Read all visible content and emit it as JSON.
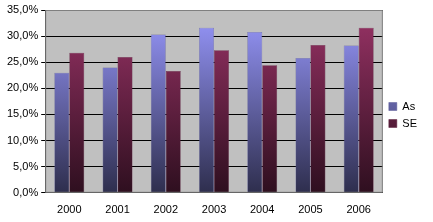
{
  "chart_data": {
    "type": "bar",
    "categories": [
      "2000",
      "2001",
      "2002",
      "2003",
      "2004",
      "2005",
      "2006"
    ],
    "series": [
      {
        "name": "As",
        "color": "#9999ff",
        "values": [
          23.0,
          24.0,
          30.3,
          31.6,
          30.8,
          25.8,
          28.2
        ]
      },
      {
        "name": "SE",
        "color": "#993366",
        "values": [
          26.8,
          26.0,
          23.3,
          27.3,
          24.4,
          28.3,
          31.6
        ]
      }
    ],
    "ylim": [
      0,
      35
    ],
    "yticks": [
      {
        "value": 0,
        "label": "0,0%"
      },
      {
        "value": 5,
        "label": "5,0%"
      },
      {
        "value": 10,
        "label": "10,0%"
      },
      {
        "value": 15,
        "label": "15,0%"
      },
      {
        "value": 20,
        "label": "20,0%"
      },
      {
        "value": 25,
        "label": "25,0%"
      },
      {
        "value": 30,
        "label": "30,0%"
      },
      {
        "value": 35,
        "label": "35,0%"
      }
    ],
    "grid": true,
    "legend": "right"
  }
}
